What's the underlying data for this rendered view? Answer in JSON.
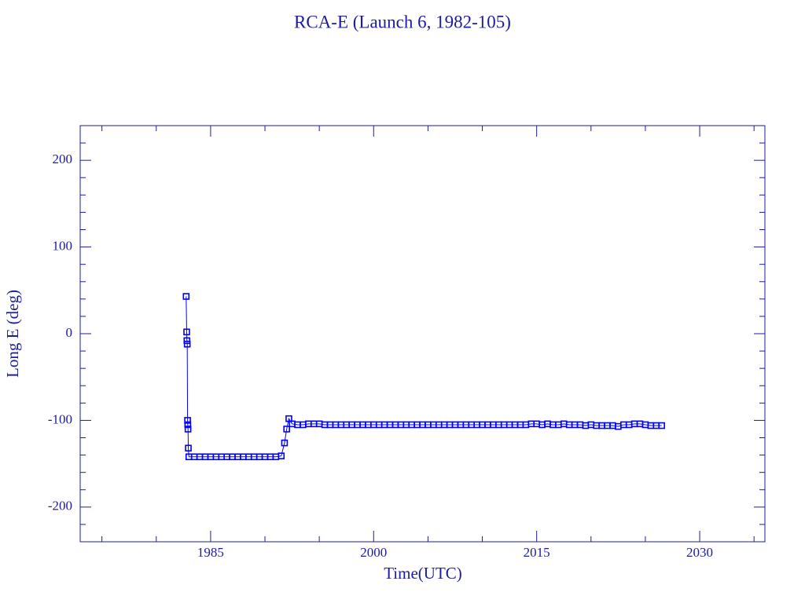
{
  "chart_data": {
    "type": "line",
    "title": "RCA-E (Launch 6, 1982-105)",
    "x_label": "Time(UTC)",
    "y_label": "Long E (deg)",
    "xlim": [
      1973,
      2036
    ],
    "ylim": [
      -240,
      240
    ],
    "xticks": [
      1985,
      2000,
      2015,
      2030
    ],
    "yticks": [
      -200,
      -100,
      0,
      100,
      200
    ],
    "xticks_minor": [
      1975,
      1980,
      1990,
      1995,
      2005,
      2010,
      2020,
      2025,
      2035
    ],
    "yticks_minor": [
      -220,
      -180,
      -160,
      -140,
      -120,
      -80,
      -60,
      -40,
      -20,
      20,
      40,
      60,
      80,
      120,
      140,
      160,
      180,
      220
    ],
    "axis_color": "#1c1c9c",
    "series": [
      {
        "color": "#0000ff",
        "x": [
          1982.75,
          1982.8,
          1982.82,
          1982.85,
          1982.88,
          1982.9,
          1982.92,
          1982.95,
          1983.0,
          1983.5,
          1984,
          1984.5,
          1985,
          1985.5,
          1986,
          1986.5,
          1987,
          1987.5,
          1988,
          1988.5,
          1989,
          1989.5,
          1990,
          1990.5,
          1991,
          1991.5,
          1991.8,
          1992,
          1992.2,
          1992.5,
          1993,
          1993.5,
          1994,
          1994.5,
          1995,
          1995.5,
          1996,
          1996.5,
          1997,
          1997.5,
          1998,
          1998.5,
          1999,
          1999.5,
          2000,
          2000.5,
          2001,
          2001.5,
          2002,
          2002.5,
          2003,
          2003.5,
          2004,
          2004.5,
          2005,
          2005.5,
          2006,
          2006.5,
          2007,
          2007.5,
          2008,
          2008.5,
          2009,
          2009.5,
          2010,
          2010.5,
          2011,
          2011.5,
          2012,
          2012.5,
          2013,
          2013.5,
          2014,
          2014.5,
          2015,
          2015.5,
          2016,
          2016.5,
          2017,
          2017.5,
          2018,
          2018.5,
          2019,
          2019.5,
          2020,
          2020.5,
          2021,
          2021.5,
          2022,
          2022.5,
          2023,
          2023.5,
          2024,
          2024.5,
          2025,
          2025.5,
          2026,
          2026.5
        ],
        "values": [
          43,
          2,
          -8,
          -12,
          -100,
          -105,
          -110,
          -132,
          -142,
          -142,
          -142,
          -142,
          -142,
          -142,
          -142,
          -142,
          -142,
          -142,
          -142,
          -142,
          -142,
          -142,
          -142,
          -142,
          -142,
          -141,
          -126,
          -110,
          -98,
          -104,
          -105,
          -105,
          -104,
          -104,
          -104,
          -105,
          -105,
          -105,
          -105,
          -105,
          -105,
          -105,
          -105,
          -105,
          -105,
          -105,
          -105,
          -105,
          -105,
          -105,
          -105,
          -105,
          -105,
          -105,
          -105,
          -105,
          -105,
          -105,
          -105,
          -105,
          -105,
          -105,
          -105,
          -105,
          -105,
          -105,
          -105,
          -105,
          -105,
          -105,
          -105,
          -105,
          -105,
          -104,
          -104,
          -105,
          -104,
          -105,
          -105,
          -104,
          -105,
          -105,
          -105,
          -106,
          -105,
          -106,
          -106,
          -106,
          -106,
          -107,
          -105,
          -105,
          -104,
          -104,
          -105,
          -106,
          -106,
          -106
        ]
      }
    ]
  }
}
